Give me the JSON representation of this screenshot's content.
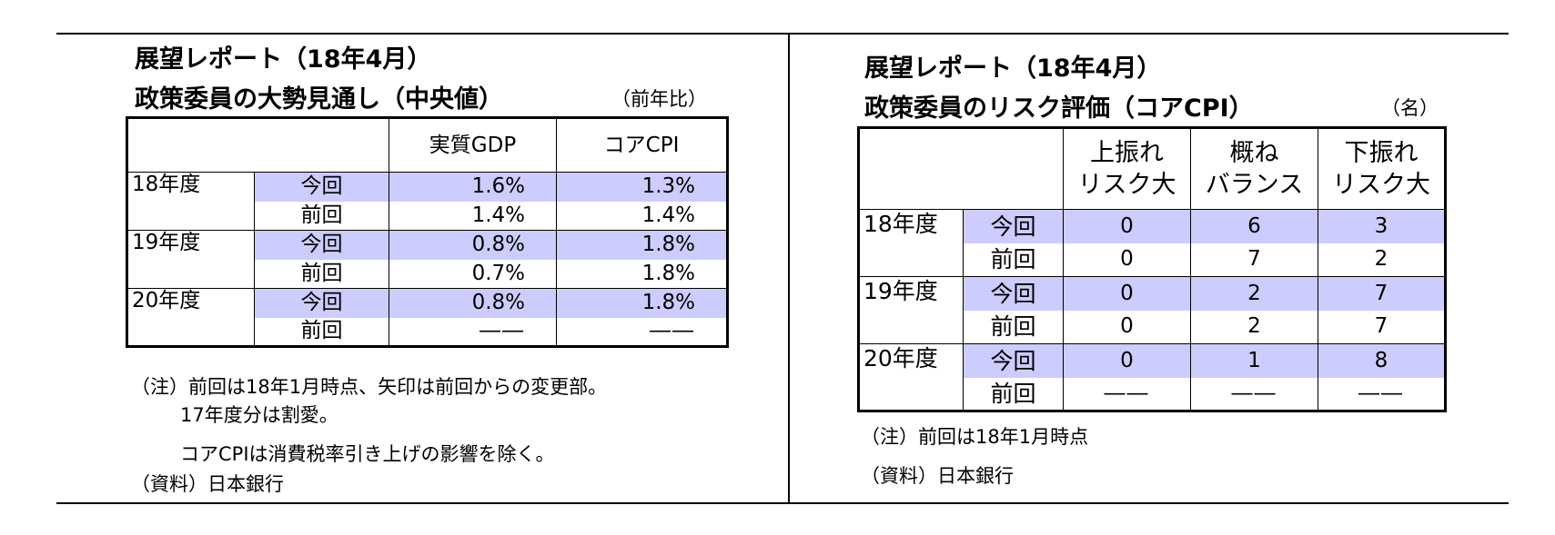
{
  "left": {
    "title_line1": "展望レポート（18年4月）",
    "title_line2": "政策委員の大勢見通し（中央値）",
    "unit": "（前年比）",
    "headers": [
      "実質GDP",
      "コアCPI"
    ],
    "rows": [
      {
        "year": "18年度",
        "label": "今回",
        "gdp": "1.6%",
        "cpi": "1.3%"
      },
      {
        "year": "",
        "label": "前回",
        "gdp": "1.4%",
        "cpi": "1.4%"
      },
      {
        "year": "19年度",
        "label": "今回",
        "gdp": "0.8%",
        "cpi": "1.8%"
      },
      {
        "year": "",
        "label": "前回",
        "gdp": "0.7%",
        "cpi": "1.8%"
      },
      {
        "year": "20年度",
        "label": "今回",
        "gdp": "0.8%",
        "cpi": "1.8%"
      },
      {
        "year": "",
        "label": "前回",
        "gdp": "――",
        "cpi": "――"
      }
    ],
    "notes": [
      "（注）前回は18年1月時点、矢印は前回からの変更部。",
      "17年度分は割愛。",
      "コアCPIは消費税率引き上げの影響を除く。",
      "（資料）日本銀行"
    ]
  },
  "right": {
    "title_line1": "展望レポート（18年4月）",
    "title_line2": "政策委員のリスク評価（コアCPI）",
    "unit": "（名）",
    "headers": [
      {
        "line1": "上振れ",
        "line2": "リスク大"
      },
      {
        "line1": "概ね",
        "line2": "バランス"
      },
      {
        "line1": "下振れ",
        "line2": "リスク大"
      }
    ],
    "rows": [
      {
        "year": "18年度",
        "label": "今回",
        "up": "0",
        "bal": "6",
        "down": "3"
      },
      {
        "year": "",
        "label": "前回",
        "up": "0",
        "bal": "7",
        "down": "2"
      },
      {
        "year": "19年度",
        "label": "今回",
        "up": "0",
        "bal": "2",
        "down": "7"
      },
      {
        "year": "",
        "label": "前回",
        "up": "0",
        "bal": "2",
        "down": "7"
      },
      {
        "year": "20年度",
        "label": "今回",
        "up": "0",
        "bal": "1",
        "down": "8"
      },
      {
        "year": "",
        "label": "前回",
        "up": "――",
        "bal": "――",
        "down": "――"
      }
    ],
    "notes": [
      "（注）前回は18年1月時点",
      "（資料）日本銀行"
    ]
  },
  "colors": {
    "highlight": "#ccccff"
  }
}
